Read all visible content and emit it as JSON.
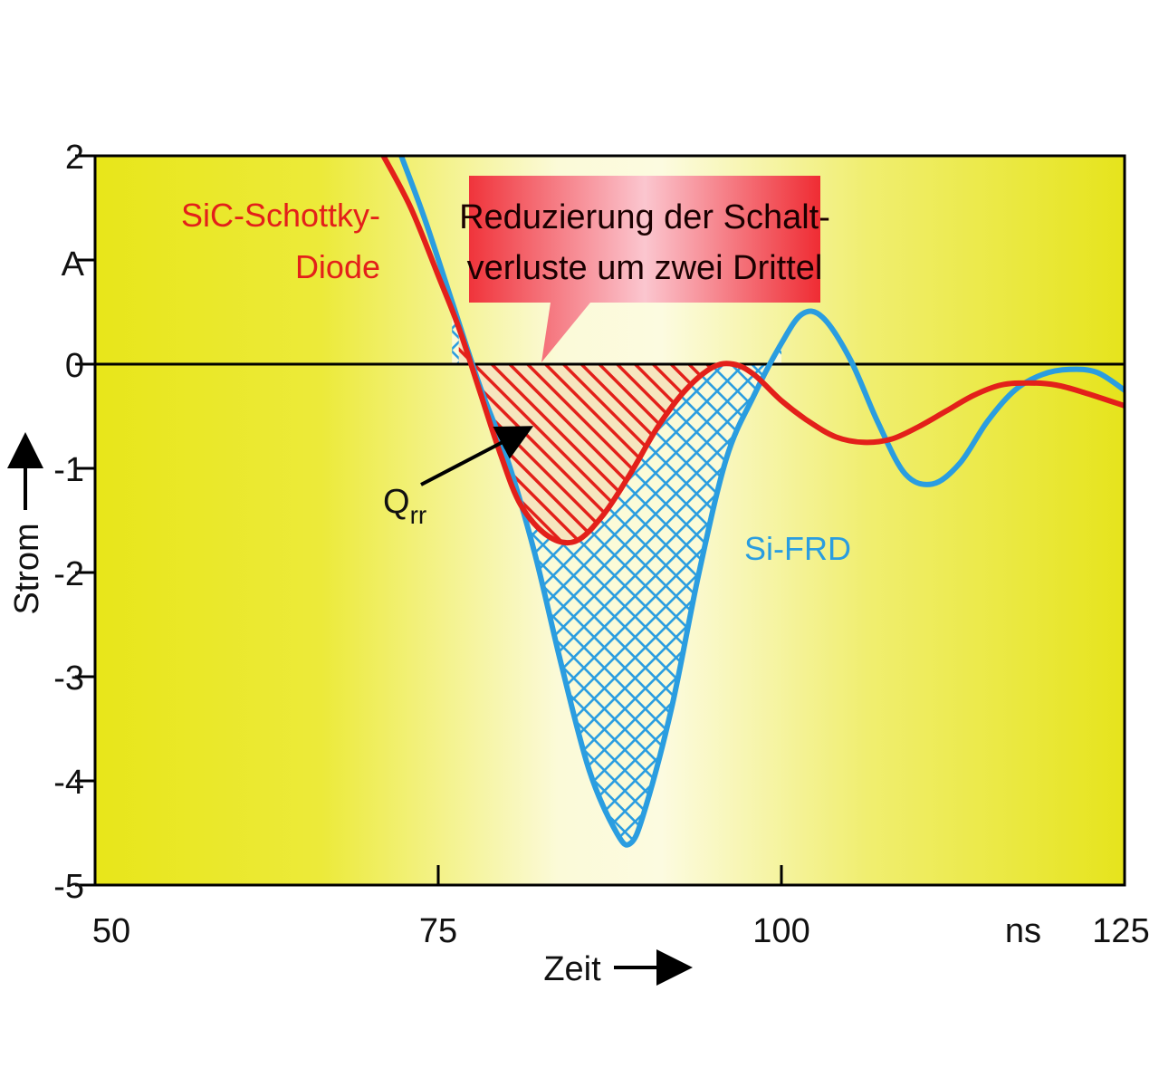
{
  "chart_data": {
    "type": "line",
    "xlabel": "Zeit",
    "ylabel": "Strom",
    "x_unit": "ns",
    "y_unit": "A",
    "xlim": [
      50,
      125
    ],
    "ylim": [
      -5,
      2
    ],
    "x_ticks": [
      50,
      75,
      100,
      125
    ],
    "y_ticks": [
      2,
      0,
      -1,
      -2,
      -3,
      -4,
      -5
    ],
    "y_tick_unit_label": "A",
    "zero_line": true,
    "background": "yellow-white horizontal gradient",
    "series": [
      {
        "name": "SiC-Schottky-Diode",
        "color": "#e3201a",
        "x": [
          71,
          73,
          75,
          76.5,
          78,
          79.5,
          81,
          83,
          85,
          87,
          89,
          91,
          93,
          95,
          96.5,
          98,
          100,
          102,
          104,
          106,
          108,
          110,
          112,
          114,
          116,
          118,
          120,
          122,
          125
        ],
        "y": [
          2.0,
          1.5,
          0.85,
          0.35,
          -0.25,
          -0.85,
          -1.35,
          -1.65,
          -1.7,
          -1.45,
          -1.05,
          -0.6,
          -0.25,
          -0.03,
          0.0,
          -0.1,
          -0.35,
          -0.55,
          -0.7,
          -0.75,
          -0.72,
          -0.6,
          -0.45,
          -0.3,
          -0.2,
          -0.18,
          -0.2,
          -0.27,
          -0.4
        ]
      },
      {
        "name": "Si-FRD",
        "color": "#2a9de0",
        "x": [
          72.3,
          74,
          76,
          78,
          80,
          82,
          84,
          86,
          88,
          89,
          90,
          92,
          94,
          96,
          98,
          100,
          101.5,
          103,
          105,
          107,
          109,
          111,
          113,
          115,
          117,
          119,
          121,
          123,
          125
        ],
        "y": [
          2.0,
          1.4,
          0.6,
          -0.2,
          -0.9,
          -1.8,
          -2.9,
          -3.9,
          -4.5,
          -4.6,
          -4.3,
          -3.3,
          -2.0,
          -0.9,
          -0.3,
          0.2,
          0.48,
          0.45,
          0.05,
          -0.55,
          -1.05,
          -1.15,
          -0.95,
          -0.55,
          -0.25,
          -0.1,
          -0.05,
          -0.08,
          -0.25
        ]
      }
    ],
    "annotations": {
      "callout": [
        "Reduzierung der Schalt-",
        "verluste um zwei Drittel"
      ],
      "qrr_main": "Q",
      "qrr_sub": "rr",
      "series_label_red": [
        "SiC-Schottky-",
        "Diode"
      ],
      "series_label_blue": "Si-FRD"
    }
  }
}
